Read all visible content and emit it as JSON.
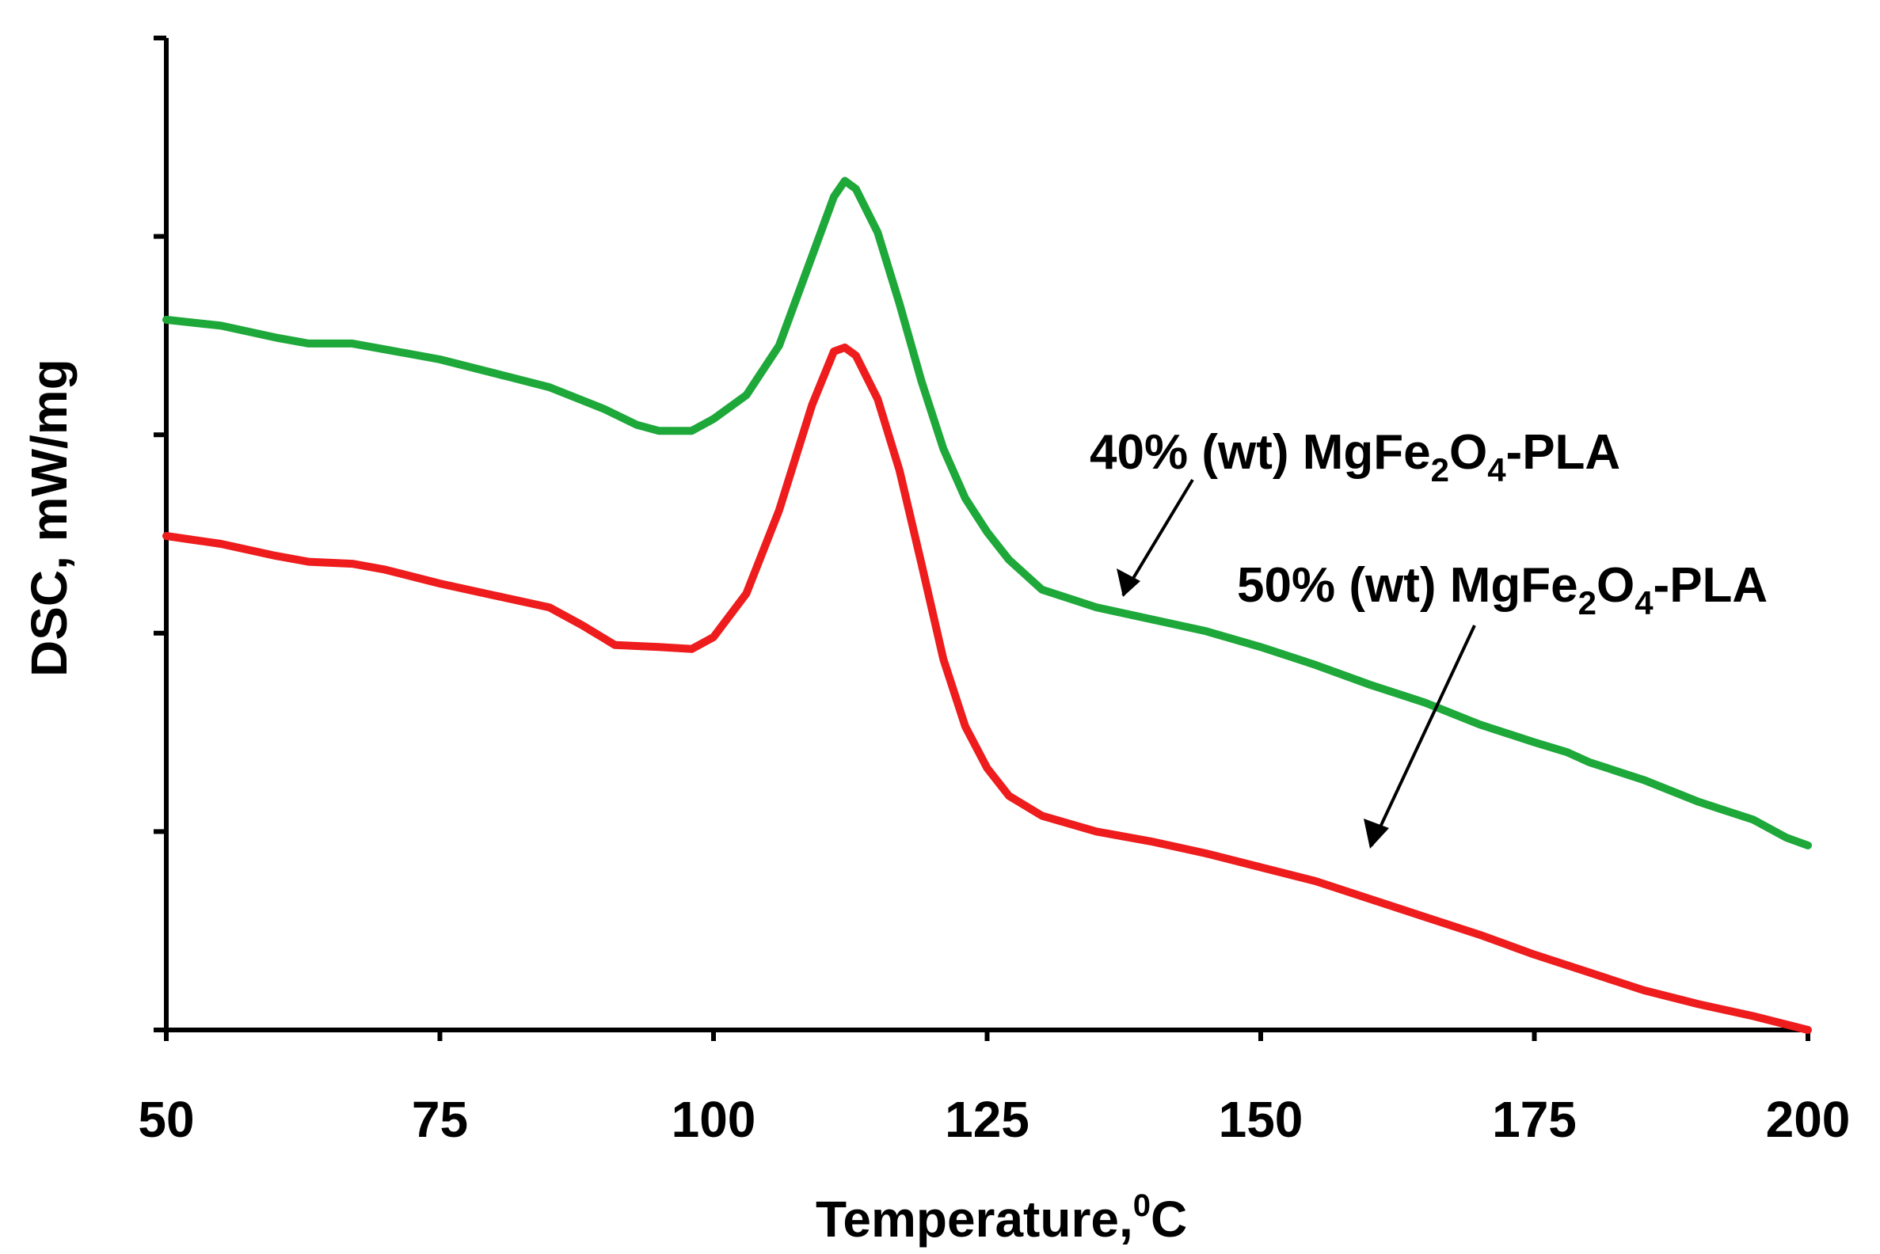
{
  "chart_data": {
    "type": "line",
    "title": "",
    "xlabel": "Temperature,",
    "xlabel_sup": "0",
    "xlabel_unit": "C",
    "ylabel": "DSC, mW/mg",
    "xlim": [
      50,
      200
    ],
    "ylim": [
      0,
      5
    ],
    "x_ticks": [
      50,
      75,
      100,
      125,
      150,
      175,
      200
    ],
    "y_ticks": [
      0,
      1,
      2,
      3,
      4,
      5
    ],
    "y_tick_labels_shown": false,
    "grid": false,
    "series": [
      {
        "name": "40% (wt) MgFe2O4-PLA",
        "color": "#1ea83a",
        "points": [
          [
            50,
            3.58
          ],
          [
            55,
            3.55
          ],
          [
            60,
            3.49
          ],
          [
            63,
            3.46
          ],
          [
            67,
            3.46
          ],
          [
            70,
            3.43
          ],
          [
            75,
            3.38
          ],
          [
            80,
            3.31
          ],
          [
            85,
            3.24
          ],
          [
            90,
            3.13
          ],
          [
            93,
            3.05
          ],
          [
            95,
            3.02
          ],
          [
            98,
            3.02
          ],
          [
            100,
            3.08
          ],
          [
            103,
            3.2
          ],
          [
            106,
            3.45
          ],
          [
            109,
            3.9
          ],
          [
            111,
            4.2
          ],
          [
            112,
            4.28
          ],
          [
            113,
            4.24
          ],
          [
            115,
            4.02
          ],
          [
            117,
            3.66
          ],
          [
            119,
            3.27
          ],
          [
            121,
            2.93
          ],
          [
            123,
            2.68
          ],
          [
            125,
            2.51
          ],
          [
            127,
            2.37
          ],
          [
            130,
            2.22
          ],
          [
            135,
            2.13
          ],
          [
            140,
            2.07
          ],
          [
            145,
            2.01
          ],
          [
            150,
            1.93
          ],
          [
            155,
            1.84
          ],
          [
            160,
            1.74
          ],
          [
            165,
            1.65
          ],
          [
            170,
            1.54
          ],
          [
            175,
            1.45
          ],
          [
            178,
            1.4
          ],
          [
            180,
            1.35
          ],
          [
            185,
            1.26
          ],
          [
            190,
            1.15
          ],
          [
            195,
            1.06
          ],
          [
            198,
            0.97
          ],
          [
            200,
            0.93
          ]
        ]
      },
      {
        "name": "50% (wt) MgFe2O4-PLA",
        "color": "#ee1c1c",
        "points": [
          [
            50,
            2.49
          ],
          [
            55,
            2.45
          ],
          [
            60,
            2.39
          ],
          [
            63,
            2.36
          ],
          [
            67,
            2.35
          ],
          [
            70,
            2.32
          ],
          [
            75,
            2.25
          ],
          [
            80,
            2.19
          ],
          [
            85,
            2.13
          ],
          [
            88,
            2.04
          ],
          [
            91,
            1.94
          ],
          [
            95,
            1.93
          ],
          [
            98,
            1.92
          ],
          [
            100,
            1.98
          ],
          [
            103,
            2.2
          ],
          [
            106,
            2.62
          ],
          [
            109,
            3.15
          ],
          [
            111,
            3.42
          ],
          [
            112,
            3.44
          ],
          [
            113,
            3.4
          ],
          [
            115,
            3.18
          ],
          [
            117,
            2.82
          ],
          [
            119,
            2.35
          ],
          [
            121,
            1.87
          ],
          [
            123,
            1.53
          ],
          [
            125,
            1.32
          ],
          [
            127,
            1.18
          ],
          [
            130,
            1.08
          ],
          [
            135,
            1.0
          ],
          [
            140,
            0.95
          ],
          [
            145,
            0.89
          ],
          [
            150,
            0.82
          ],
          [
            155,
            0.75
          ],
          [
            160,
            0.66
          ],
          [
            165,
            0.57
          ],
          [
            170,
            0.48
          ],
          [
            175,
            0.38
          ],
          [
            180,
            0.29
          ],
          [
            185,
            0.2
          ],
          [
            190,
            0.13
          ],
          [
            195,
            0.07
          ],
          [
            200,
            0.0
          ]
        ]
      }
    ],
    "annotations": [
      {
        "prefix": "40% (wt) MgFe",
        "sub1": "2",
        "mid": "O",
        "sub2": "4",
        "suffix": "-PLA"
      },
      {
        "prefix": "50% (wt) MgFe",
        "sub1": "2",
        "mid": "O",
        "sub2": "4",
        "suffix": "-PLA"
      }
    ]
  }
}
